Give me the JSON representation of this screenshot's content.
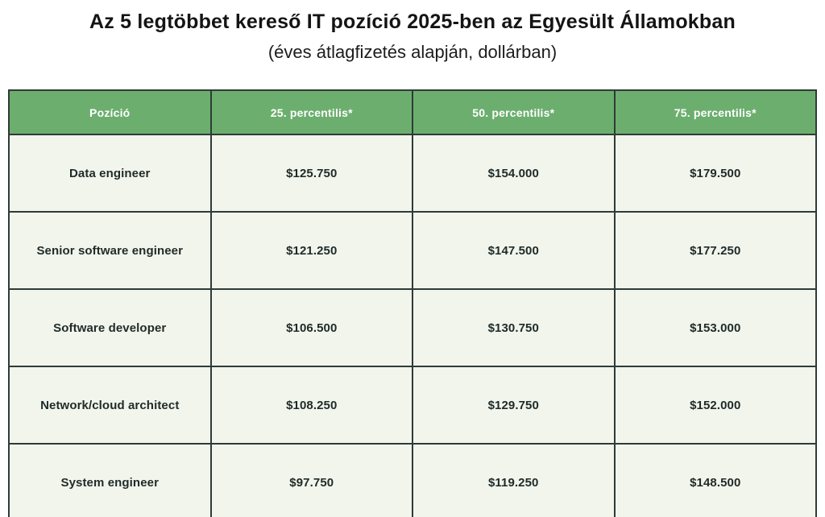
{
  "page": {
    "title": "Az 5 legtöbbet kereső IT pozíció 2025-ben az Egyesült Államokban",
    "subtitle": "(éves átlagfizetés alapján, dollárban)"
  },
  "chart_data": {
    "type": "table",
    "title": "Az 5 legtöbbet kereső IT pozíció 2025-ben az Egyesült Államokban",
    "subtitle": "(éves átlagfizetés alapján, dollárban)",
    "columns": [
      "Pozíció",
      "25. percentilis*",
      "50. percentilis*",
      "75. percentilis*"
    ],
    "rows": [
      [
        "Data engineer",
        "$125.750",
        "$154.000",
        "$179.500"
      ],
      [
        "Senior software engineer",
        "$121.250",
        "$147.500",
        "$177.250"
      ],
      [
        "Software developer",
        "$106.500",
        "$130.750",
        "$153.000"
      ],
      [
        "Network/cloud architect",
        "$108.250",
        "$129.750",
        "$152.000"
      ],
      [
        "System engineer",
        "$97.750",
        "$119.250",
        "$148.500"
      ]
    ]
  },
  "colors": {
    "header_bg": "#6cae6e",
    "header_text": "#ffffff",
    "cell_bg": "#f2f5ec",
    "border": "#2e3b38",
    "title_text": "#141414",
    "cell_text": "#1e2b29"
  }
}
